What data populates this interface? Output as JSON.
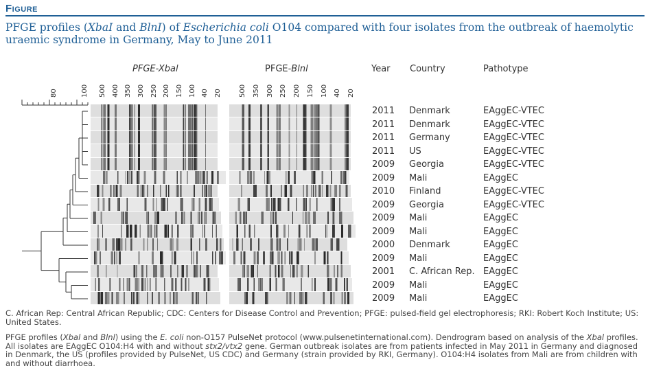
{
  "figure_label": "Figure",
  "caption_parts": [
    {
      "t": "PFGE profiles (",
      "i": false
    },
    {
      "t": "XbaI",
      "i": true
    },
    {
      "t": " and ",
      "i": false
    },
    {
      "t": "BlnI",
      "i": true
    },
    {
      "t": ") of ",
      "i": false
    },
    {
      "t": "Escherichia coli",
      "i": true
    },
    {
      "t": " O104 compared with four isolates from the outbreak of haemolytic uraemic syndrome in Germany, May to June 2011",
      "i": false
    }
  ],
  "scale": {
    "labels": [
      "80",
      "100"
    ],
    "values": [
      80,
      100
    ],
    "min": 60,
    "max": 100
  },
  "gel_xbal": {
    "title": "PFGE-Xbal",
    "markers": [
      "500",
      "400",
      "350",
      "300",
      "250",
      "200",
      "150",
      "100",
      "40",
      "20"
    ]
  },
  "gel_blnl": {
    "title_prefix": "PFGE-",
    "title_italic": "Blnl",
    "markers": [
      "500",
      "350",
      "300",
      "250",
      "200",
      "150",
      "100",
      "40",
      "20"
    ]
  },
  "columns": {
    "year": "Year",
    "country": "Country",
    "pathotype": "Pathotype"
  },
  "isolates": [
    {
      "year": "2011",
      "country": "Denmark",
      "pathotype": "EAggEC-VTEC"
    },
    {
      "year": "2011",
      "country": "Denmark",
      "pathotype": "EAggEC-VTEC"
    },
    {
      "year": "2011",
      "country": "Germany",
      "pathotype": "EAggEC-VTEC"
    },
    {
      "year": "2011",
      "country": "US",
      "pathotype": "EAggEC-VTEC"
    },
    {
      "year": "2009",
      "country": "Georgia",
      "pathotype": "EAggEC-VTEC"
    },
    {
      "year": "2009",
      "country": "Mali",
      "pathotype": "EAggEC"
    },
    {
      "year": "2010",
      "country": "Finland",
      "pathotype": "EAggEC-VTEC"
    },
    {
      "year": "2009",
      "country": "Georgia",
      "pathotype": "EAggEC-VTEC"
    },
    {
      "year": "2009",
      "country": "Mali",
      "pathotype": "EAggEC"
    },
    {
      "year": "2009",
      "country": "Mali",
      "pathotype": "EAggEC"
    },
    {
      "year": "2000",
      "country": "Denmark",
      "pathotype": "EAggEC"
    },
    {
      "year": "2009",
      "country": "Mali",
      "pathotype": "EAggEC"
    },
    {
      "year": "2001",
      "country": "C. African Rep.",
      "pathotype": "EAggEC"
    },
    {
      "year": "2009",
      "country": "Mali",
      "pathotype": "EAggEC"
    },
    {
      "year": "2009",
      "country": "Mali",
      "pathotype": "EAggEC"
    }
  ],
  "abbreviations": "C. African Rep: Central African Republic; CDC: Centers for Disease Control and Prevention; PFGE: pulsed-field gel electrophoresis; RKI: Robert Koch Institute; US: United States.",
  "notes_parts": [
    {
      "t": "PFGE profiles (",
      "i": false
    },
    {
      "t": "Xbal",
      "i": true
    },
    {
      "t": " and ",
      "i": false
    },
    {
      "t": "Blnl",
      "i": true
    },
    {
      "t": ") using the ",
      "i": false
    },
    {
      "t": "E. coli",
      "i": true
    },
    {
      "t": " non-O157 PulseNet protocol (www.pulsenetinternational.com). Dendrogram based on analysis of the ",
      "i": false
    },
    {
      "t": "Xbal",
      "i": true
    },
    {
      "t": " profiles. All isolates are EAggEC O104:H4 with and without ",
      "i": false
    },
    {
      "t": "stx2/vtx2",
      "i": true
    },
    {
      "t": " gene. German outbreak isolates are from patients infected in May 2011 in Germany and diagnosed in Denmark, the US (profiles provided by PulseNet, US CDC) and Germany (strain provided by RKI, Germany). O104:H4 isolates from Mali are from children with and without diarrhoea.",
      "i": false
    }
  ],
  "colors": {
    "accent": "#1f5f96",
    "text": "#333333"
  }
}
